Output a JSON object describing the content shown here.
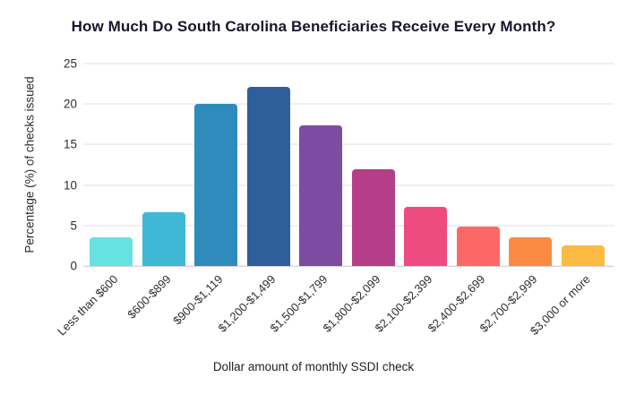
{
  "chart_data": {
    "type": "bar",
    "title": "How Much Do South Carolina Beneficiaries Receive Every Month?",
    "xlabel": "Dollar amount of monthly SSDI check",
    "ylabel": "Percentage (%) of checks issued",
    "categories": [
      "Less than $600",
      "$600-$899",
      "$900-$1,119",
      "$1,200-$1,499",
      "$1,500-$1,799",
      "$1,800-$2,099",
      "$2,100-$2,399",
      "$2,400-$2,699",
      "$2,700-$2,999",
      "$3,000 or more"
    ],
    "values": [
      3.5,
      6.6,
      20.0,
      22.1,
      17.4,
      11.9,
      7.3,
      4.9,
      3.5,
      2.6
    ],
    "bar_colors": [
      "#68e1e3",
      "#3fb8d6",
      "#2e8bbc",
      "#2f5f9b",
      "#7d4ba1",
      "#b53e8a",
      "#ee4b80",
      "#fd6866",
      "#f98b43",
      "#fdba43"
    ],
    "ylim": [
      0,
      25
    ],
    "yticks": [
      0,
      5,
      10,
      15,
      20,
      25
    ],
    "grid": "horizontal",
    "legend": "none",
    "background_color": "#ffffff",
    "title_color": "#16162d",
    "axis_text_color": "#2e2e2e",
    "gridline_color": "#e2e2e2",
    "axis_line_color": "#c6c6c6"
  }
}
